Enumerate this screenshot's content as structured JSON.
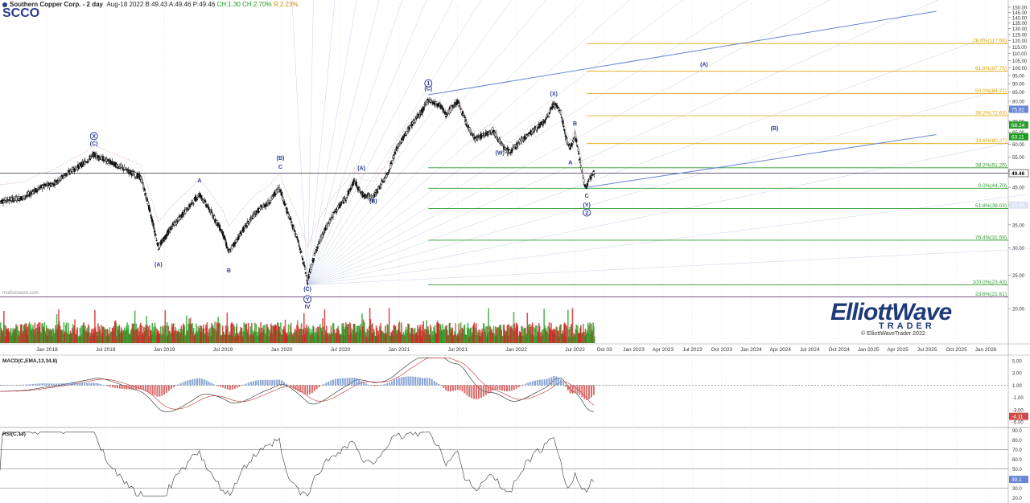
{
  "header": {
    "title": "Southern Copper Corp. - 2 day",
    "date": "Aug-18 2022",
    "bid": "B:49.43",
    "ask": "A:49.46",
    "price": "P:49.46",
    "change": "CH:1.30",
    "change_pct": "CH:2.70%",
    "range": "R:2.23%",
    "symbol": "SCCO"
  },
  "watermark": "motivewave.com",
  "logo": {
    "line1": "ElliottWave",
    "line2": "TRADER",
    "copyright": "© ElliottWaveTrader 2022"
  },
  "colors": {
    "up": "#1e9e1e",
    "down": "#d01818",
    "accent": "#2b3a8f",
    "fib_green": "#2e9e2e",
    "fib_orange": "#e0a400",
    "trendline": "#6a84d6"
  },
  "chart_data": [
    {
      "type": "candlestick",
      "panel": "price",
      "title": "Southern Copper Corp. - 2 day",
      "y_axis": [
        20,
        25,
        30,
        35,
        40,
        45,
        50,
        55,
        60,
        65,
        70,
        75,
        80,
        85,
        90,
        95,
        100,
        105,
        110,
        115,
        120,
        125,
        130,
        135,
        140,
        145,
        150
      ],
      "ylim": [
        17,
        152
      ],
      "x_ticks": [
        "Jan 2018",
        "Jul 2018",
        "Jan 2019",
        "Jul 2019",
        "Jan 2020",
        "Jul 2020",
        "Jan 2021",
        "Jul 2021",
        "Jan 2022",
        "Jul 2022",
        "Oct 03",
        "Jan 2023",
        "Apr 2023",
        "Jul 2023",
        "Oct 2023",
        "Jan 2024",
        "Apr 2024",
        "Jul 2024",
        "Oct 2024",
        "Jan 2025",
        "Apr 2025",
        "Jul 2025",
        "Oct 2025",
        "Jan 2026"
      ],
      "x_tick_dates": [
        2018.0,
        2018.5,
        2019.0,
        2019.5,
        2020.0,
        2020.5,
        2021.0,
        2021.5,
        2022.0,
        2022.5,
        2022.75,
        2023.0,
        2023.25,
        2023.5,
        2023.75,
        2024.0,
        2024.25,
        2024.5,
        2024.75,
        2025.0,
        2025.25,
        2025.5,
        2025.75,
        2026.0
      ],
      "price_path": [
        [
          2017.6,
          41
        ],
        [
          2017.8,
          42
        ],
        [
          2017.95,
          45
        ],
        [
          2018.05,
          46
        ],
        [
          2018.2,
          50
        ],
        [
          2018.32,
          53
        ],
        [
          2018.4,
          56
        ],
        [
          2018.45,
          55
        ],
        [
          2018.55,
          53
        ],
        [
          2018.7,
          50
        ],
        [
          2018.8,
          48
        ],
        [
          2018.88,
          38
        ],
        [
          2018.95,
          30
        ],
        [
          2019.05,
          34
        ],
        [
          2019.2,
          39
        ],
        [
          2019.3,
          43
        ],
        [
          2019.4,
          38
        ],
        [
          2019.5,
          33
        ],
        [
          2019.55,
          29
        ],
        [
          2019.65,
          33
        ],
        [
          2019.78,
          38
        ],
        [
          2019.9,
          41
        ],
        [
          2019.98,
          45
        ],
        [
          2020.05,
          38
        ],
        [
          2020.12,
          33
        ],
        [
          2020.2,
          26
        ],
        [
          2020.22,
          24
        ],
        [
          2020.3,
          30
        ],
        [
          2020.45,
          38
        ],
        [
          2020.55,
          42
        ],
        [
          2020.62,
          47
        ],
        [
          2020.68,
          43
        ],
        [
          2020.78,
          42
        ],
        [
          2020.9,
          49
        ],
        [
          2020.98,
          58
        ],
        [
          2021.1,
          68
        ],
        [
          2021.2,
          75
        ],
        [
          2021.25,
          81
        ],
        [
          2021.3,
          79
        ],
        [
          2021.35,
          78
        ],
        [
          2021.4,
          73
        ],
        [
          2021.5,
          80
        ],
        [
          2021.58,
          68
        ],
        [
          2021.65,
          62
        ],
        [
          2021.8,
          66
        ],
        [
          2021.9,
          58
        ],
        [
          2021.95,
          57
        ],
        [
          2022.05,
          62
        ],
        [
          2022.15,
          66
        ],
        [
          2022.25,
          70
        ],
        [
          2022.32,
          79
        ],
        [
          2022.38,
          74
        ],
        [
          2022.42,
          63
        ],
        [
          2022.46,
          58
        ],
        [
          2022.5,
          64
        ],
        [
          2022.55,
          52
        ],
        [
          2022.58,
          46
        ],
        [
          2022.6,
          45
        ],
        [
          2022.63,
          48
        ],
        [
          2022.65,
          50
        ],
        [
          2022.67,
          49.46
        ]
      ],
      "last_price": 49.46,
      "right_axis_tags": [
        "75.82",
        "68.24",
        "63.11",
        "49.46",
        "39.95"
      ],
      "fib_levels": [
        {
          "label": "78.4%(117.66)",
          "value": 117.66,
          "color": "orange"
        },
        {
          "label": "61.8%(97.75)",
          "value": 97.75,
          "color": "orange"
        },
        {
          "label": "50.0%(84.21)",
          "value": 84.21,
          "color": "orange"
        },
        {
          "label": "38.2%(72.63)",
          "value": 72.63,
          "color": "orange"
        },
        {
          "label": "23.6%(60.27)",
          "value": 60.27,
          "color": "orange"
        },
        {
          "label": "38.2%(51.26)",
          "value": 51.26,
          "color": "green"
        },
        {
          "label": "0.0%(44.70)",
          "value": 44.7,
          "color": "green"
        },
        {
          "label": "51.8%(39.03)",
          "value": 39.03,
          "color": "green"
        },
        {
          "label": "76.4%(31.59)",
          "value": 31.59,
          "color": "green"
        },
        {
          "label": "100.0%(23.43)",
          "value": 23.43,
          "color": "green"
        },
        {
          "label": "23.6%(21.61)",
          "value": 21.61,
          "color": "green"
        }
      ],
      "horizontal_lines": [
        {
          "value": 49.46,
          "color": "dark"
        },
        {
          "value": 21.61,
          "color": "purple"
        }
      ],
      "wave_labels": [
        {
          "text": "X",
          "circled": true,
          "x": 2018.4,
          "y": 62.5
        },
        {
          "text": "(C)",
          "x": 2018.4,
          "y": 59.5
        },
        {
          "text": "(A)",
          "x": 2018.95,
          "y": 26.5
        },
        {
          "text": "A",
          "x": 2019.3,
          "y": 46.5
        },
        {
          "text": "B",
          "x": 2019.55,
          "y": 25.5
        },
        {
          "text": "(B)",
          "x": 2019.99,
          "y": 54
        },
        {
          "text": "C",
          "x": 2019.99,
          "y": 51
        },
        {
          "text": "(C)",
          "x": 2020.22,
          "y": 22.5
        },
        {
          "text": "Y",
          "circled": true,
          "x": 2020.22,
          "y": 21
        },
        {
          "text": "IV",
          "x": 2020.22,
          "y": 20
        },
        {
          "text": "(A)",
          "x": 2020.68,
          "y": 50.5
        },
        {
          "text": "(B)",
          "x": 2020.78,
          "y": 40.5
        },
        {
          "text": "1",
          "circled": true,
          "x": 2021.25,
          "y": 89
        },
        {
          "text": "(C)",
          "x": 2021.25,
          "y": 86
        },
        {
          "text": "(W)",
          "x": 2021.86,
          "y": 56
        },
        {
          "text": "(X)",
          "x": 2022.32,
          "y": 83
        },
        {
          "text": "B",
          "x": 2022.5,
          "y": 68
        },
        {
          "text": "A",
          "x": 2022.46,
          "y": 52.5
        },
        {
          "text": "C",
          "x": 2022.6,
          "y": 42
        },
        {
          "text": "(Y)",
          "x": 2022.6,
          "y": 39.5
        },
        {
          "text": "2",
          "circled": true,
          "x": 2022.6,
          "y": 37.5
        },
        {
          "text": "(A)",
          "x": 2023.6,
          "y": 101
        },
        {
          "text": "(B)",
          "x": 2024.2,
          "y": 66
        }
      ],
      "trendlines": [
        {
          "from": [
            2021.25,
            83.5
          ],
          "to": [
            2025.58,
            146
          ]
        },
        {
          "from": [
            2022.6,
            45
          ],
          "to": [
            2025.58,
            64
          ]
        }
      ]
    },
    {
      "type": "line",
      "panel": "macd",
      "title": "MACD(C,EMA,13,34,8)",
      "y_axis": [
        5.0,
        3.0,
        1.0,
        -1.0,
        -3.0,
        -5.0
      ],
      "last_value": -4.11,
      "dashed_levels": [
        1.0
      ]
    },
    {
      "type": "line",
      "panel": "rsi",
      "title": "RSI(C,13)",
      "y_axis": [
        90.0,
        80.0,
        70.0,
        60.0,
        50.0,
        40.0,
        30.0,
        20.0
      ],
      "last_value": 39.1,
      "levels": [
        70,
        50,
        30
      ]
    }
  ]
}
